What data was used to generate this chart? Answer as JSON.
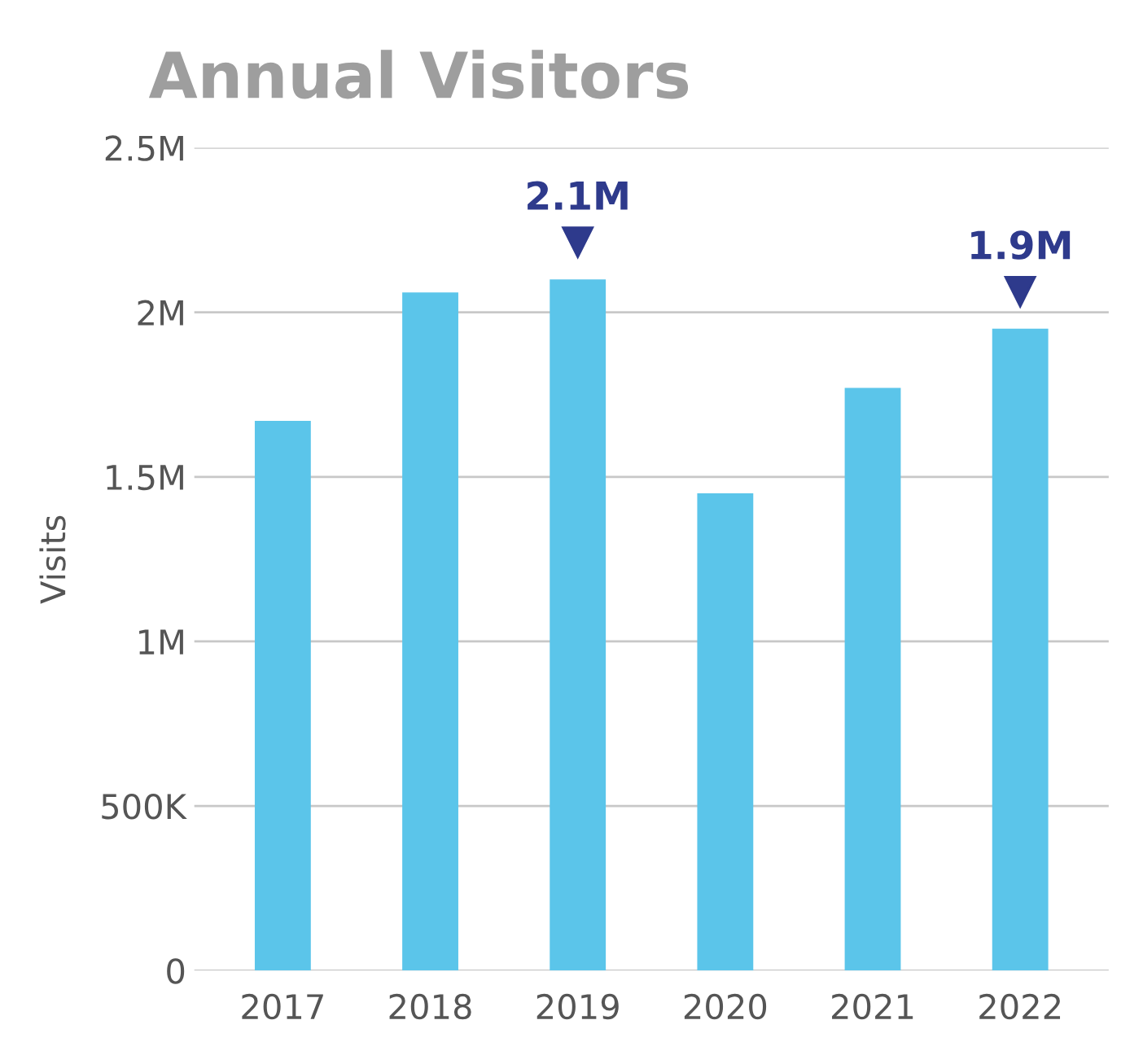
{
  "chart_data": {
    "type": "bar",
    "title": "Annual Visitors",
    "ylabel": "Visits",
    "categories": [
      "2017",
      "2018",
      "2019",
      "2020",
      "2021",
      "2022"
    ],
    "values": [
      1670000,
      2060000,
      2100000,
      1450000,
      1770000,
      1950000
    ],
    "value_labels": [
      null,
      null,
      "2.1M",
      null,
      null,
      "1.9M"
    ],
    "color": "#5bc5ea",
    "ylim": [
      0,
      2500000
    ],
    "yticks": [
      {
        "value": 0,
        "label": "0"
      },
      {
        "value": 500000,
        "label": "500K"
      },
      {
        "value": 1000000,
        "label": "1M"
      },
      {
        "value": 1500000,
        "label": "1.5M"
      },
      {
        "value": 2000000,
        "label": "2M"
      },
      {
        "value": 2500000,
        "label": "2.5M"
      }
    ],
    "grid": "y"
  }
}
